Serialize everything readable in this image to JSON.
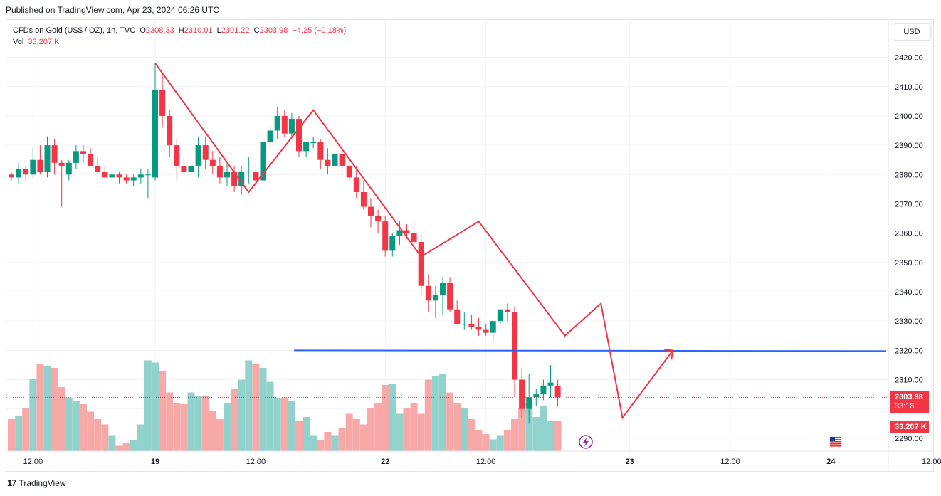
{
  "header": {
    "published": "Published on TradingView.com, Apr 23, 2024 06:26 UTC"
  },
  "legend": {
    "symbol": "CFDs on Gold (US$ / OZ), 1h, TVC",
    "o_label": "O",
    "o_value": "2308.33",
    "h_label": "H",
    "h_value": "2310.01",
    "l_label": "L",
    "l_value": "2301.22",
    "c_label": "C",
    "c_value": "2303.98",
    "change": "−4.25 (−0.18%)",
    "vol_label": "Vol",
    "vol_value": "33.207 K"
  },
  "toolbar": {
    "currency": "USD"
  },
  "price_tag": {
    "price": "2303.98",
    "countdown": "33:18"
  },
  "volume_tag": {
    "value": "33.207 K"
  },
  "footer": {
    "brand": "TradingView"
  },
  "colors": {
    "up": "#089981",
    "down": "#f23645",
    "vol_up": "#92d2cc",
    "vol_down": "#f7a9a7",
    "hline": "#2962ff",
    "zigzag": "#f23645"
  },
  "chart_data": {
    "type": "candlestick",
    "y_ticks": [
      "2420.00",
      "2410.00",
      "2400.00",
      "2390.00",
      "2380.00",
      "2370.00",
      "2360.00",
      "2350.00",
      "2340.00",
      "2330.00",
      "2320.00",
      "2310.00",
      "2300.00",
      "2290.00"
    ],
    "x_ticks": [
      "12:00",
      "19",
      "12:00",
      "22",
      "12:00",
      "23",
      "12:00",
      "24",
      "12:00"
    ],
    "ylim": [
      2289,
      2425
    ],
    "last_price": 2303.98,
    "candles": [
      [
        2380,
        2381,
        2378,
        2379
      ],
      [
        2379,
        2384,
        2377,
        2382
      ],
      [
        2382,
        2383,
        2378,
        2380
      ],
      [
        2380,
        2389,
        2379,
        2385
      ],
      [
        2385,
        2390,
        2380,
        2381
      ],
      [
        2381,
        2393,
        2379,
        2390
      ],
      [
        2390,
        2392,
        2380,
        2384
      ],
      [
        2384,
        2385,
        2369,
        2383
      ],
      [
        2380,
        2385,
        2378,
        2384
      ],
      [
        2384,
        2390,
        2382,
        2388
      ],
      [
        2388,
        2390,
        2384,
        2387
      ],
      [
        2387,
        2389,
        2383,
        2383
      ],
      [
        2383,
        2386,
        2380,
        2381
      ],
      [
        2381,
        2383,
        2379,
        2379
      ],
      [
        2379,
        2381,
        2378,
        2380
      ],
      [
        2380,
        2381,
        2377,
        2379
      ],
      [
        2379,
        2380,
        2377,
        2378
      ],
      [
        2378,
        2380,
        2376,
        2379
      ],
      [
        2379,
        2382,
        2377,
        2380
      ],
      [
        2380,
        2382,
        2372,
        2380
      ],
      [
        2379,
        2418,
        2378,
        2409
      ],
      [
        2409,
        2415,
        2396,
        2400
      ],
      [
        2400,
        2402,
        2386,
        2390
      ],
      [
        2390,
        2392,
        2378,
        2383
      ],
      [
        2383,
        2386,
        2380,
        2381
      ],
      [
        2381,
        2384,
        2378,
        2383
      ],
      [
        2383,
        2393,
        2379,
        2390
      ],
      [
        2390,
        2393,
        2382,
        2385
      ],
      [
        2385,
        2388,
        2380,
        2383
      ],
      [
        2383,
        2386,
        2377,
        2379
      ],
      [
        2379,
        2384,
        2376,
        2381
      ],
      [
        2381,
        2383,
        2374,
        2376
      ],
      [
        2376,
        2383,
        2373,
        2381
      ],
      [
        2381,
        2386,
        2377,
        2381
      ],
      [
        2381,
        2384,
        2375,
        2378
      ],
      [
        2378,
        2393,
        2377,
        2391
      ],
      [
        2391,
        2397,
        2389,
        2395
      ],
      [
        2395,
        2403,
        2392,
        2400
      ],
      [
        2400,
        2402,
        2393,
        2394
      ],
      [
        2394,
        2401,
        2393,
        2399
      ],
      [
        2399,
        2400,
        2386,
        2388
      ],
      [
        2388,
        2390,
        2386,
        2391
      ],
      [
        2391,
        2393,
        2389,
        2391
      ],
      [
        2391,
        2392,
        2382,
        2385
      ],
      [
        2385,
        2389,
        2380,
        2383
      ],
      [
        2383,
        2386,
        2380,
        2387
      ],
      [
        2387,
        2388,
        2381,
        2383
      ],
      [
        2383,
        2386,
        2378,
        2379
      ],
      [
        2379,
        2383,
        2372,
        2374
      ],
      [
        2374,
        2378,
        2368,
        2369
      ],
      [
        2369,
        2372,
        2362,
        2366
      ],
      [
        2366,
        2368,
        2360,
        2364
      ],
      [
        2364,
        2366,
        2352,
        2354
      ],
      [
        2354,
        2360,
        2352,
        2359
      ],
      [
        2359,
        2364,
        2356,
        2361
      ],
      [
        2361,
        2363,
        2358,
        2360
      ],
      [
        2360,
        2364,
        2356,
        2357
      ],
      [
        2357,
        2360,
        2339,
        2342
      ],
      [
        2342,
        2346,
        2333,
        2337
      ],
      [
        2337,
        2342,
        2331,
        2339
      ],
      [
        2339,
        2345,
        2332,
        2343
      ],
      [
        2343,
        2345,
        2333,
        2334
      ],
      [
        2334,
        2337,
        2329,
        2329
      ],
      [
        2329,
        2333,
        2327,
        2329
      ],
      [
        2329,
        2332,
        2327,
        2328
      ],
      [
        2328,
        2331,
        2325,
        2327
      ],
      [
        2327,
        2329,
        2325,
        2326
      ],
      [
        2326,
        2329,
        2323,
        2330
      ],
      [
        2330,
        2333,
        2329,
        2334
      ],
      [
        2334,
        2336,
        2330,
        2333
      ],
      [
        2333,
        2335,
        2304,
        2310
      ],
      [
        2310,
        2314,
        2297,
        2300
      ],
      [
        2300,
        2312,
        2295,
        2304
      ],
      [
        2304,
        2307,
        2301,
        2305
      ],
      [
        2305,
        2310,
        2303,
        2308
      ],
      [
        2308,
        2315,
        2304,
        2309
      ],
      [
        2308,
        2310,
        2301,
        2304
      ]
    ],
    "volume_series_visible": true,
    "horizontal_line": 2320,
    "zigzag": [
      [
        20,
        2418
      ],
      [
        33,
        2374
      ],
      [
        42,
        2402
      ],
      [
        57,
        2352
      ],
      [
        65,
        2364
      ],
      [
        77,
        2325
      ],
      [
        82,
        2336
      ],
      [
        85,
        2297
      ],
      [
        92,
        2320
      ]
    ],
    "x_tick_bar_index": [
      3,
      20,
      34,
      52,
      66,
      86,
      100,
      114,
      128
    ]
  }
}
